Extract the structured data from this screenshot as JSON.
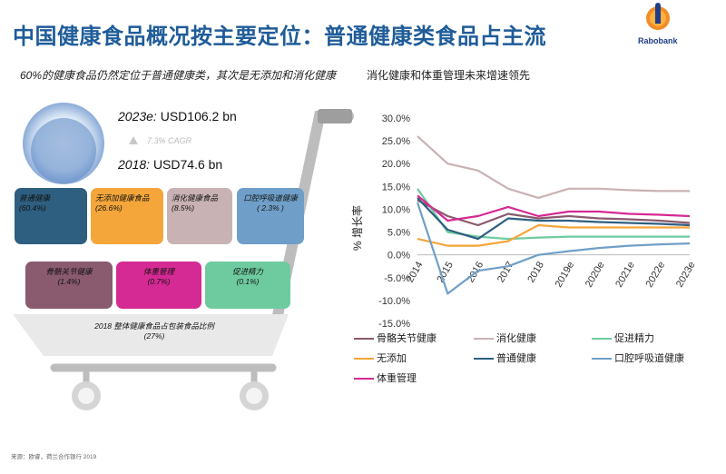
{
  "header": {
    "title": "中国健康食品概况按主要定位：普通健康类食品占主流",
    "subtitle_left": "60%的健康食品仍然定位于普通健康类，其次是无添加和消化健康",
    "subtitle_right": "消化健康和体重管理未来增速领先",
    "logo_text": "Rabobank"
  },
  "market": {
    "size_2023_year": "2023e:",
    "size_2023_value": "USD106.2 bn",
    "cagr": "7.3% CAGR",
    "size_2018_year": "2018:",
    "size_2018_value": "USD74.6 bn"
  },
  "segments": [
    {
      "name": "普通健康",
      "share": "(60.4%)",
      "color": "#2e5f80"
    },
    {
      "name": "无添加健康食品",
      "share": "(26.6%)",
      "color": "#f4a63a"
    },
    {
      "name": "消化健康食品",
      "share": "(8.5%)",
      "color": "#c9b2b4"
    },
    {
      "name": "口腔呼吸道健康",
      "share": "( 2.3% )",
      "color": "#6f9fc8"
    },
    {
      "name": "骨骼关节健康",
      "share": "(1.4%)",
      "color": "#8a5a6e"
    },
    {
      "name": "体重管理",
      "share": "(0.7%)",
      "color": "#d52a93"
    },
    {
      "name": "促进精力",
      "share": "(0.1%)",
      "color": "#6ecba0"
    }
  ],
  "basket": {
    "line1": "2018 整体健康食品占包装食品比例",
    "line2": "(27%)"
  },
  "source": "来源：欧睿，荷兰合作银行 2019",
  "chart_data": {
    "type": "line",
    "x": [
      "2014",
      "2015",
      "2016",
      "2017",
      "2018",
      "2019e",
      "2020e",
      "2021e",
      "2022e",
      "2023e"
    ],
    "ylabel": "% 增长率",
    "ylim": [
      -15,
      30
    ],
    "yticks": [
      "30.0%",
      "25.0%",
      "20.0%",
      "15.0%",
      "10.0%",
      "5.0%",
      "0.0%",
      "-5.0%",
      "-10.0%",
      "-15.0%"
    ],
    "series": [
      {
        "name": "骨骼关节健康",
        "color": "#8a5a6e",
        "values": [
          12.0,
          8.5,
          6.5,
          9.0,
          8.0,
          8.5,
          8.0,
          7.8,
          7.5,
          7.0
        ]
      },
      {
        "name": "消化健康",
        "color": "#c9b2b4",
        "values": [
          26.0,
          20.0,
          18.5,
          14.5,
          12.5,
          14.5,
          14.5,
          14.2,
          14.0,
          14.0
        ]
      },
      {
        "name": "促进精力",
        "color": "#6ecba0",
        "values": [
          14.5,
          5.0,
          4.0,
          3.5,
          3.8,
          4.0,
          4.0,
          4.0,
          4.0,
          4.0
        ]
      },
      {
        "name": "无添加",
        "color": "#f4a63a",
        "values": [
          3.5,
          2.0,
          2.0,
          3.0,
          6.5,
          6.0,
          6.0,
          6.0,
          6.0,
          6.0
        ]
      },
      {
        "name": "普通健康",
        "color": "#2e5f80",
        "values": [
          12.5,
          5.5,
          3.5,
          8.0,
          7.5,
          7.5,
          7.2,
          7.0,
          6.8,
          6.5
        ]
      },
      {
        "name": "口腔呼吸道健康",
        "color": "#6f9fc8",
        "values": [
          11.5,
          -8.5,
          -3.5,
          -2.5,
          0.0,
          0.8,
          1.5,
          2.0,
          2.3,
          2.5
        ]
      },
      {
        "name": "体重管理",
        "color": "#d52a93",
        "values": [
          13.0,
          7.5,
          8.5,
          10.5,
          8.5,
          9.5,
          9.5,
          9.0,
          8.8,
          8.5
        ]
      }
    ]
  }
}
